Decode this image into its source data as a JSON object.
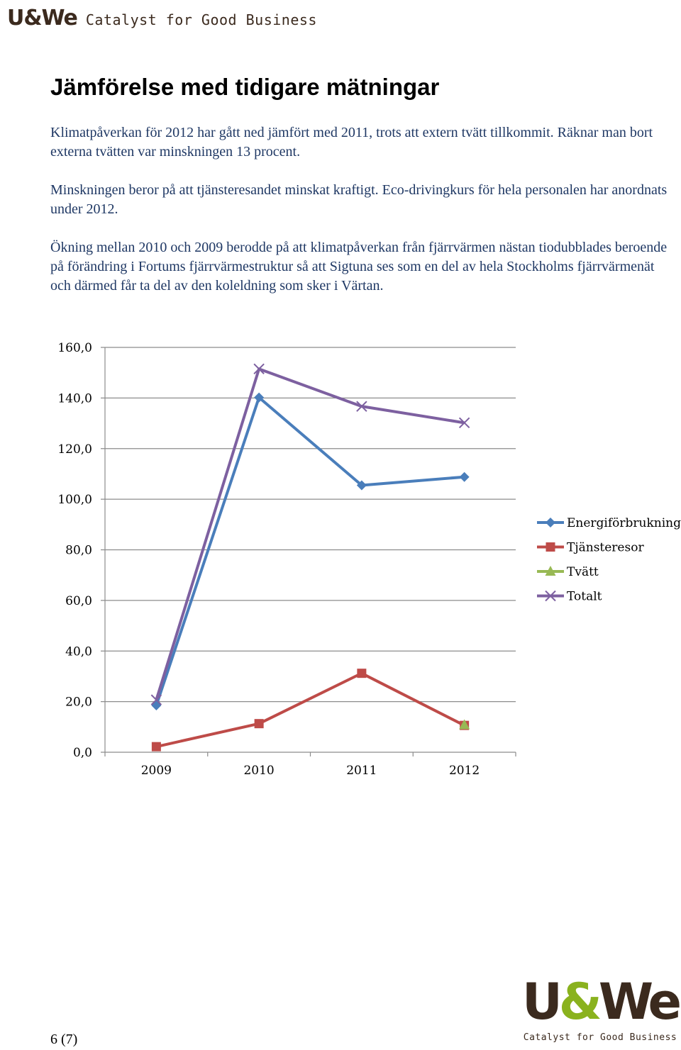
{
  "header": {
    "logo": "U&We",
    "tagline": "Catalyst for Good Business"
  },
  "title": "Jämförelse med tidigare mätningar",
  "paragraphs": {
    "p1": "Klimatpåverkan för 2012 har gått ned jämfört med 2011, trots att extern tvätt tillkommit. Räknar man bort externa tvätten var minskningen 13 procent.",
    "p2": "Minskningen beror på att tjänsteresandet minskat kraftigt. Eco-drivingkurs för hela personalen har anordnats under 2012.",
    "p3": "Ökning mellan 2010 och 2009 berodde på att klimatpåverkan från fjärrvärmen nästan tiodubblades beroende på förändring i Fortums fjärrvärmestruktur så att Sigtuna ses som en del av hela Stockholms fjärrvärmenät och därmed får ta del av den koleldning som sker i Värtan."
  },
  "chart_data": {
    "type": "line",
    "categories": [
      "2009",
      "2010",
      "2011",
      "2012"
    ],
    "ylim": [
      0,
      160
    ],
    "yticks": [
      "0,0",
      "20,0",
      "40,0",
      "60,0",
      "80,0",
      "100,0",
      "120,0",
      "140,0",
      "160,0"
    ],
    "legend_position": "right",
    "series": [
      {
        "name": "Energiförbrukning",
        "color": "#4a7ebb",
        "marker": "diamond",
        "values": [
          18.5,
          140.2,
          105.5,
          108.8
        ]
      },
      {
        "name": "Tjänsteresor",
        "color": "#be4b48",
        "marker": "square",
        "values": [
          2.2,
          11.3,
          31.2,
          10.6
        ]
      },
      {
        "name": "Tvätt",
        "color": "#98b954",
        "marker": "triangle",
        "values": [
          null,
          null,
          null,
          10.8
        ]
      },
      {
        "name": "Totalt",
        "color": "#7d60a0",
        "marker": "x",
        "values": [
          20.7,
          151.5,
          136.7,
          130.2
        ]
      }
    ]
  },
  "footer": {
    "page_number": "6 (7)",
    "logo_left": "U",
    "logo_amp": "&",
    "logo_right": "We",
    "logo_tagline": "Catalyst for Good Business"
  }
}
